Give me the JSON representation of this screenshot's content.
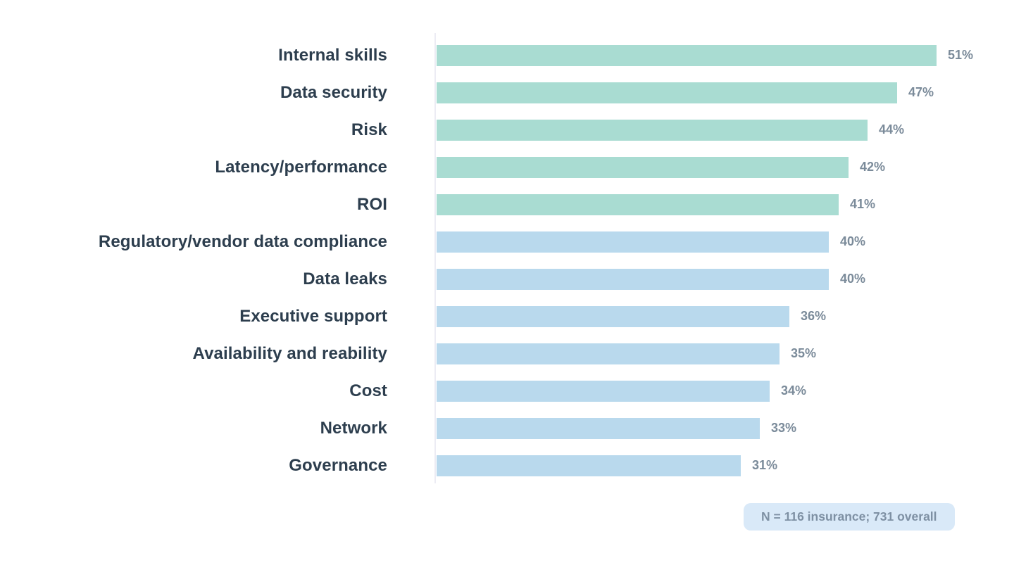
{
  "chart_data": {
    "type": "bar",
    "orientation": "horizontal",
    "title": "",
    "categories": [
      "Internal skills",
      "Data security",
      "Risk",
      "Latency/performance",
      "ROI",
      "Regulatory/vendor data compliance",
      "Data leaks",
      "Executive support",
      "Availability and reability",
      "Cost",
      "Network",
      "Governance"
    ],
    "values": [
      51,
      47,
      44,
      42,
      41,
      40,
      40,
      36,
      35,
      34,
      33,
      31
    ],
    "unit": "%",
    "bar_colors": [
      "#a9dcd2",
      "#a9dcd2",
      "#a9dcd2",
      "#a9dcd2",
      "#a9dcd2",
      "#b9d9ed",
      "#b9d9ed",
      "#b9d9ed",
      "#b9d9ed",
      "#b9d9ed",
      "#b9d9ed",
      "#b9d9ed"
    ],
    "xlim": [
      0,
      59
    ],
    "grid": false,
    "legend": false,
    "value_labels_shown": true
  },
  "colors": {
    "category_label": "#2d3e4e",
    "value_label": "#7b8b9a",
    "axis_line": "#ececf4",
    "teal_bar": "#a9dcd2",
    "blue_bar": "#b9d9ed",
    "badge_background": "#d9e9f8",
    "badge_text": "#7e90a3",
    "background": "#ffffff"
  },
  "footnote": {
    "text": "N = 116 insurance; 731 overall"
  }
}
